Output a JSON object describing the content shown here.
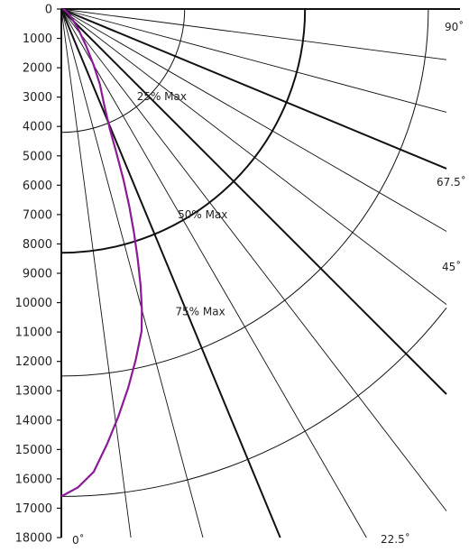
{
  "chart_data": {
    "type": "polar-candela",
    "y_ticks": [
      "0",
      "1000",
      "2000",
      "3000",
      "4000",
      "5000",
      "6000",
      "7000",
      "8000",
      "9000",
      "10000",
      "11000",
      "12000",
      "13000",
      "14000",
      "15000",
      "16000",
      "17000",
      "18000"
    ],
    "ylim": [
      0,
      18000
    ],
    "radial_angles_deg": [
      0,
      7.5,
      15,
      22.5,
      30,
      37.5,
      45,
      52.5,
      60,
      67.5,
      75,
      82.5,
      90
    ],
    "major_angles_deg": [
      22.5,
      45,
      67.5,
      90
    ],
    "angle_labels": [
      {
        "angle": 0,
        "text": "0˚"
      },
      {
        "angle": 22.5,
        "text": "22.5˚"
      },
      {
        "angle": 45,
        "text": "45˚"
      },
      {
        "angle": 67.5,
        "text": "67.5˚"
      },
      {
        "angle": 90,
        "text": "90˚"
      }
    ],
    "rings": [
      {
        "value": 4200,
        "label": "25% Max",
        "label_angle": 41
      },
      {
        "value": 8300,
        "label": "50% Max",
        "label_angle": 30
      },
      {
        "value": 12500,
        "label": "",
        "label_angle": 0
      },
      {
        "value": 16600,
        "label": "",
        "label_angle": 0
      }
    ],
    "ring_labels_extra": [
      {
        "text": "75% Max",
        "value": 12500,
        "label_angle": 22
      }
    ],
    "series": [
      {
        "color": "#8a1a96",
        "points": [
          [
            0,
            16600
          ],
          [
            2,
            16300
          ],
          [
            4,
            15800
          ],
          [
            6,
            14900
          ],
          [
            8,
            14000
          ],
          [
            10,
            13100
          ],
          [
            12,
            12200
          ],
          [
            14,
            11300
          ],
          [
            15,
            10600
          ],
          [
            16,
            9800
          ],
          [
            17,
            8900
          ],
          [
            18,
            8000
          ],
          [
            19,
            7100
          ],
          [
            20,
            6200
          ],
          [
            21,
            5200
          ],
          [
            22,
            4400
          ],
          [
            24,
            3600
          ],
          [
            27,
            2900
          ],
          [
            30,
            2200
          ],
          [
            34,
            1500
          ],
          [
            40,
            900
          ],
          [
            50,
            450
          ],
          [
            60,
            250
          ],
          [
            75,
            100
          ],
          [
            90,
            50
          ]
        ]
      }
    ],
    "colors": {
      "grid": "#111111",
      "curve": "#8a1a96"
    }
  }
}
